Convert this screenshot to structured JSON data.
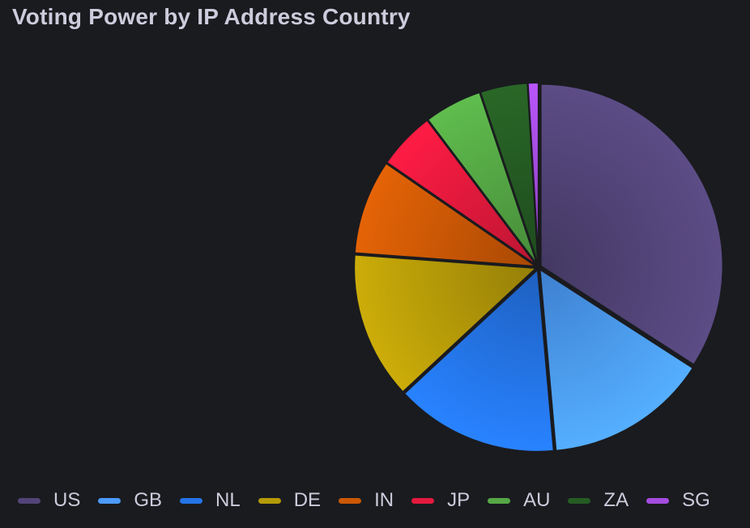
{
  "panel": {
    "title": "Voting Power by IP Address Country"
  },
  "chart_data": {
    "type": "pie",
    "title": "Voting Power by IP Address Country",
    "legend_placement": "bottom",
    "categories": [
      "US",
      "GB",
      "NL",
      "DE",
      "IN",
      "JP",
      "AU",
      "ZA",
      "SG"
    ],
    "values": [
      36.5,
      15.5,
      15.5,
      14.0,
      9.0,
      5.5,
      5.5,
      4.5,
      1.0
    ],
    "colors": [
      "#524478",
      "#4c9bfd",
      "#2474e8",
      "#b59a08",
      "#cc5805",
      "#e3193d",
      "#55a845",
      "#255c23",
      "#a44ce0"
    ]
  }
}
